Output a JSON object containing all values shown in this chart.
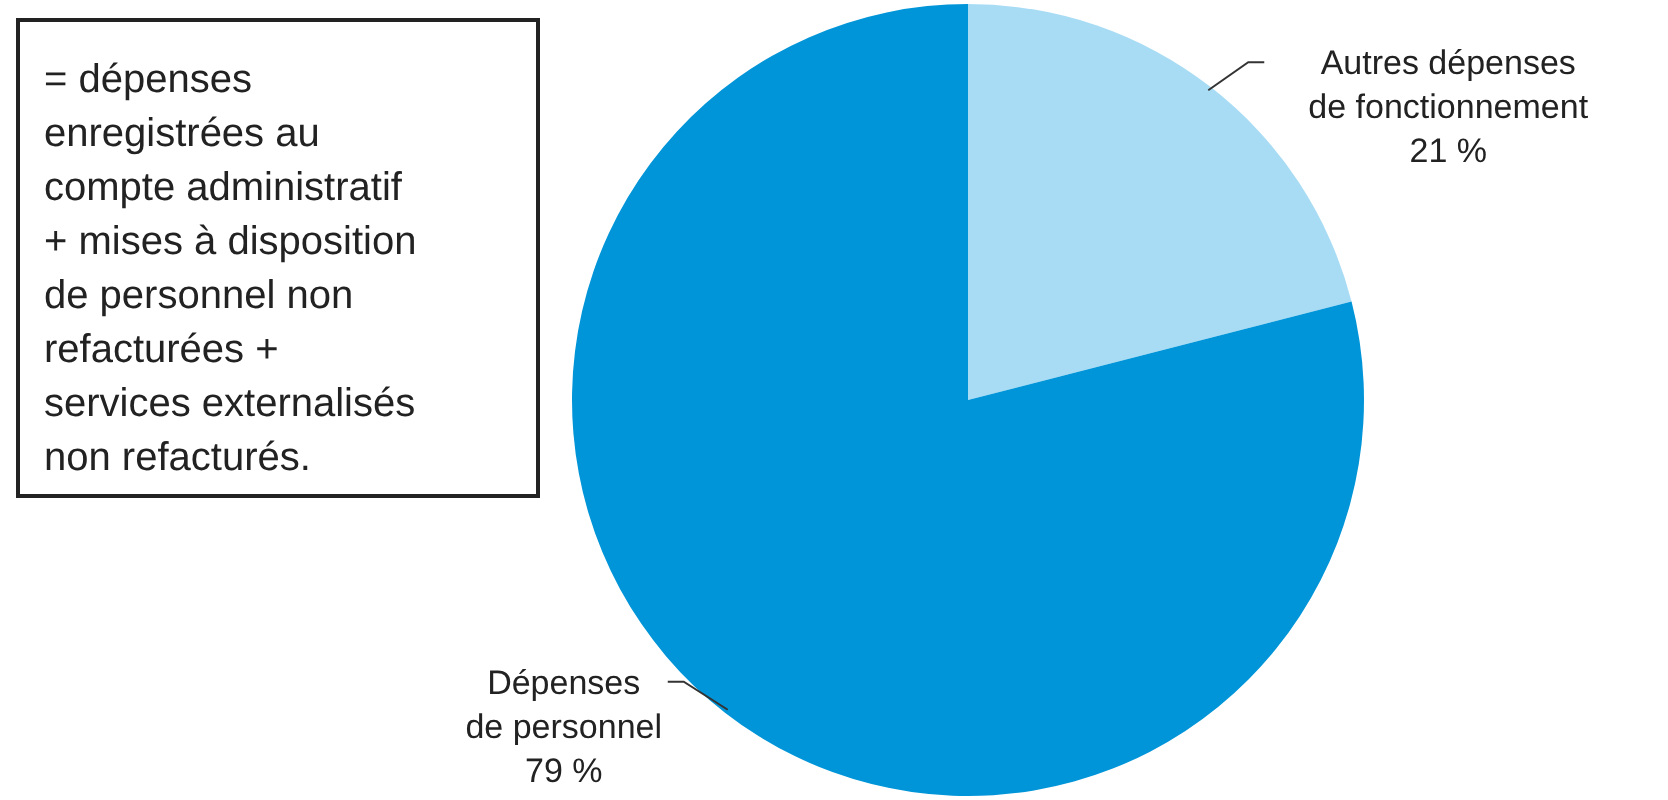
{
  "chart_data": {
    "type": "pie",
    "categories": [
      "Autres dépenses de fonctionnement",
      "Dépenses de personnel"
    ],
    "values": [
      21,
      79
    ],
    "colors": [
      "#a8dcf5",
      "#0095d8"
    ],
    "value_labels": [
      "21 %",
      "79 %"
    ],
    "annotations": [
      "= dépenses enregistrées au compte administratif + mises à disposition de personnel non refacturées + services externalisés non refacturés."
    ]
  }
}
